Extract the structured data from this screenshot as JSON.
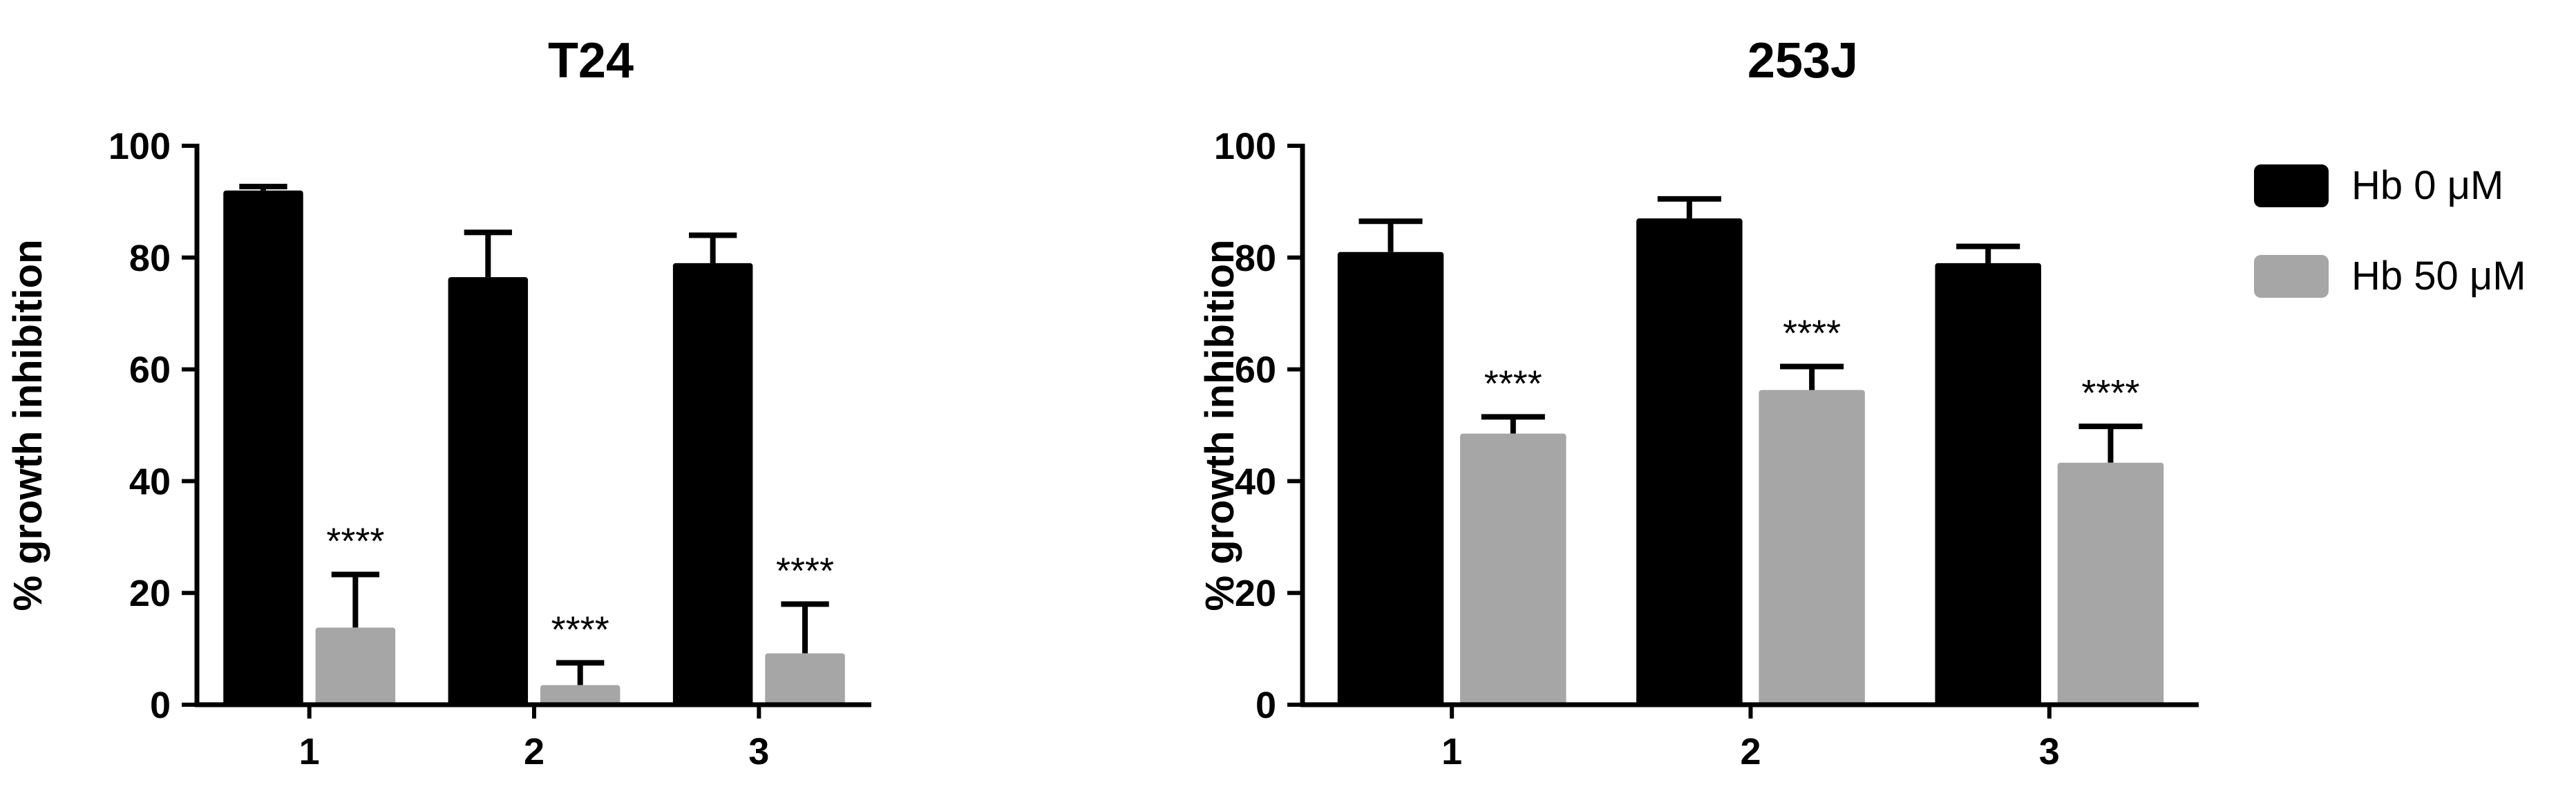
{
  "chart_data": [
    {
      "type": "bar",
      "title": "T24",
      "xlabel": "",
      "ylabel": "% growth inhibition",
      "categories": [
        "1",
        "2",
        "3"
      ],
      "ylim": [
        0,
        100
      ],
      "yticks": [
        0,
        20,
        40,
        60,
        80,
        100
      ],
      "grid": false,
      "series": [
        {
          "name": "Hb 0 μM",
          "color": "#000000",
          "values": [
            92,
            76.5,
            79
          ],
          "errors": [
            0.7,
            8,
            5
          ]
        },
        {
          "name": "Hb 50 μM",
          "color": "#a6a6a6",
          "values": [
            13.8,
            3.5,
            9.2
          ],
          "errors": [
            9.5,
            4,
            8.8
          ]
        }
      ],
      "annotations": [
        {
          "series": 1,
          "category": 0,
          "text": "****"
        },
        {
          "series": 1,
          "category": 1,
          "text": "****"
        },
        {
          "series": 1,
          "category": 2,
          "text": "****"
        }
      ]
    },
    {
      "type": "bar",
      "title": "253J",
      "xlabel": "",
      "ylabel": "% growth inhibition",
      "categories": [
        "1",
        "2",
        "3"
      ],
      "ylim": [
        0,
        100
      ],
      "yticks": [
        0,
        20,
        40,
        60,
        80,
        100
      ],
      "grid": false,
      "legend_position": "top-right",
      "series": [
        {
          "name": "Hb 0 μM",
          "color": "#000000",
          "values": [
            81,
            87,
            79
          ],
          "errors": [
            5.5,
            3.5,
            3
          ]
        },
        {
          "name": "Hb 50 μM",
          "color": "#a6a6a6",
          "values": [
            48.5,
            56.3,
            43.3
          ],
          "errors": [
            3,
            4.2,
            6.5
          ]
        }
      ],
      "annotations": [
        {
          "series": 1,
          "category": 0,
          "text": "****"
        },
        {
          "series": 1,
          "category": 1,
          "text": "****"
        },
        {
          "series": 1,
          "category": 2,
          "text": "****"
        }
      ]
    }
  ],
  "legend": {
    "items": [
      {
        "label": "Hb 0 μM",
        "color": "#000000"
      },
      {
        "label": "Hb 50 μM",
        "color": "#a6a6a6"
      }
    ]
  }
}
